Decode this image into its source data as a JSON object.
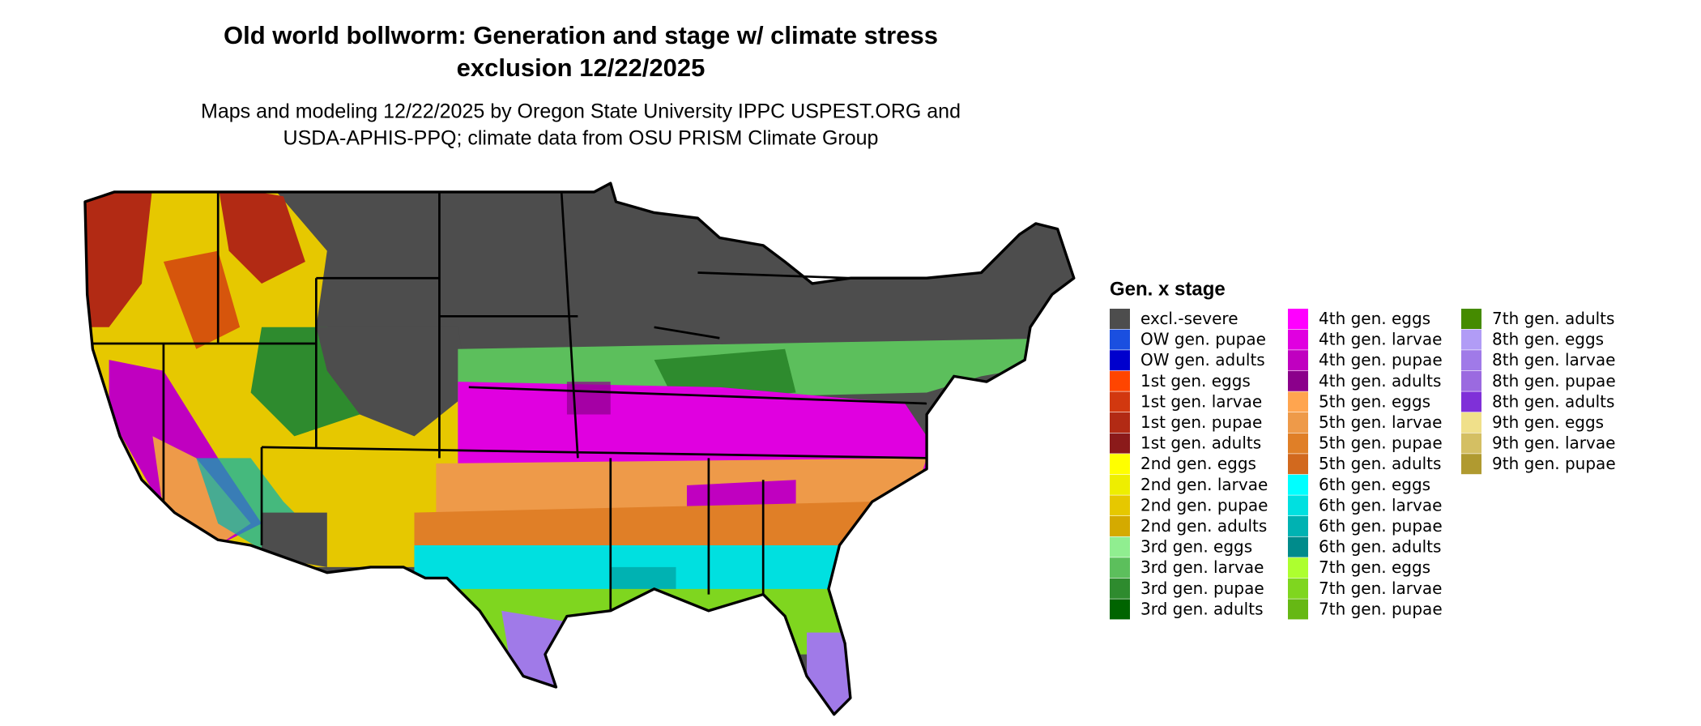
{
  "title_lines": [
    "Old world bollworm: Generation and stage w/ climate stress",
    "exclusion 12/22/2025"
  ],
  "subtitle_lines": [
    "Maps and modeling 12/22/2025 by Oregon State University IPPC USPEST.ORG and",
    "USDA-APHIS-PPQ; climate data from OSU PRISM Climate Group"
  ],
  "legend": {
    "title": "Gen. x stage",
    "rows_per_column": 15,
    "items": [
      {
        "label": "excl.-severe",
        "color": "#4d4d4d"
      },
      {
        "label": "OW gen. pupae",
        "color": "#1a4fe0"
      },
      {
        "label": "OW gen. adults",
        "color": "#0000cd"
      },
      {
        "label": "1st gen. eggs",
        "color": "#ff4500"
      },
      {
        "label": "1st gen. larvae",
        "color": "#d2380f"
      },
      {
        "label": "1st gen. pupae",
        "color": "#b22a14"
      },
      {
        "label": "1st gen. adults",
        "color": "#8b1a1a"
      },
      {
        "label": "2nd gen. eggs",
        "color": "#ffff00"
      },
      {
        "label": "2nd gen. larvae",
        "color": "#eeee00"
      },
      {
        "label": "2nd gen. pupae",
        "color": "#e6c800"
      },
      {
        "label": "2nd gen. adults",
        "color": "#d4aa00"
      },
      {
        "label": "3rd gen. eggs",
        "color": "#90ee90"
      },
      {
        "label": "3rd gen. larvae",
        "color": "#5cbf5c"
      },
      {
        "label": "3rd gen. pupae",
        "color": "#2e8b2e"
      },
      {
        "label": "3rd gen. adults",
        "color": "#006400"
      },
      {
        "label": "4th gen. eggs",
        "color": "#ff00ff"
      },
      {
        "label": "4th gen. larvae",
        "color": "#e000e0"
      },
      {
        "label": "4th gen. pupae",
        "color": "#c000c0"
      },
      {
        "label": "4th gen. adults",
        "color": "#8b008b"
      },
      {
        "label": "5th gen. eggs",
        "color": "#ffa54f"
      },
      {
        "label": "5th gen. larvae",
        "color": "#ee9a49"
      },
      {
        "label": "5th gen. pupae",
        "color": "#e07f27"
      },
      {
        "label": "5th gen. adults",
        "color": "#d2691e"
      },
      {
        "label": "6th gen. eggs",
        "color": "#00ffff"
      },
      {
        "label": "6th gen. larvae",
        "color": "#00e0e0"
      },
      {
        "label": "6th gen. pupae",
        "color": "#00b2b2"
      },
      {
        "label": "6th gen. adults",
        "color": "#008b8b"
      },
      {
        "label": "7th gen. eggs",
        "color": "#adff2f"
      },
      {
        "label": "7th gen. larvae",
        "color": "#7fd61f"
      },
      {
        "label": "7th gen. pupae",
        "color": "#66b814"
      },
      {
        "label": "7th gen. adults",
        "color": "#458b00"
      },
      {
        "label": "8th gen. eggs",
        "color": "#b19cf6"
      },
      {
        "label": "8th gen. larvae",
        "color": "#a07ae8"
      },
      {
        "label": "8th gen. pupae",
        "color": "#9b6ae0"
      },
      {
        "label": "8th gen. adults",
        "color": "#7f30d8"
      },
      {
        "label": "9th gen. eggs",
        "color": "#f0e08a"
      },
      {
        "label": "9th gen. larvae",
        "color": "#d4bf63"
      },
      {
        "label": "9th gen. pupae",
        "color": "#b09a30"
      }
    ]
  }
}
